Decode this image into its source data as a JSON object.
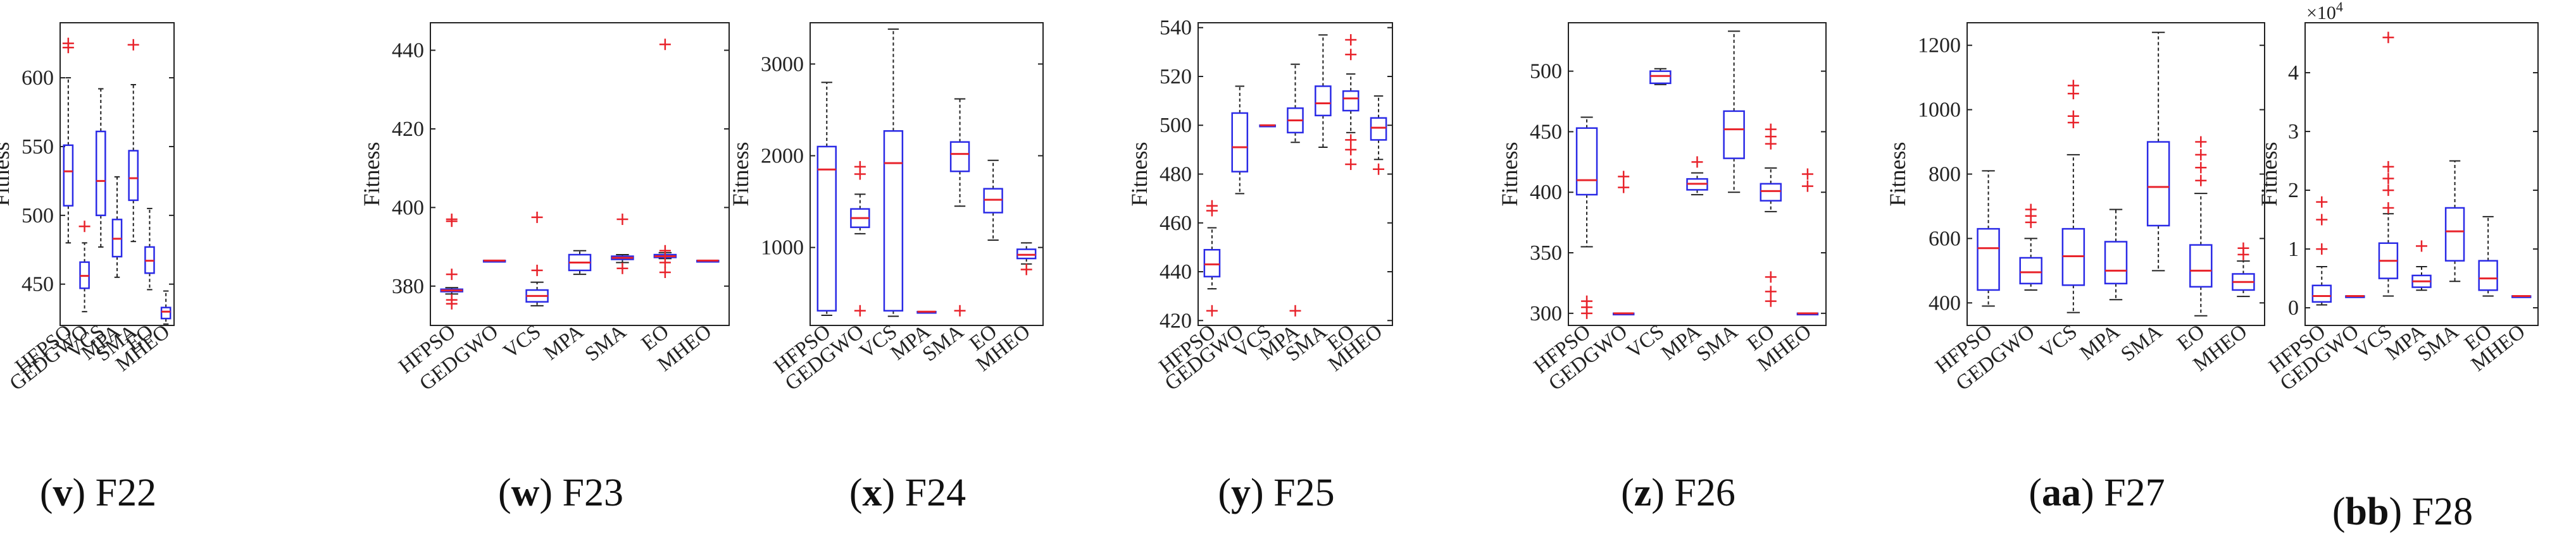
{
  "figure": {
    "ylabel": "Fitness",
    "algorithms": [
      "HFPSO",
      "GEDGWO",
      "VCS",
      "MPA",
      "SMA",
      "EO",
      "MHEO"
    ],
    "colors": {
      "box": "#2a2ae6",
      "median": "#e8232b",
      "outlier": "#e8232b",
      "whisker": "#222222",
      "axis": "#222222"
    }
  },
  "chart_data": [
    {
      "type": "box",
      "id": "v",
      "caption_letter": "v",
      "caption_fn": "F22",
      "title": "F22",
      "ylabel": "Fitness",
      "ylim": [
        420,
        640
      ],
      "yticks": [
        450,
        500,
        550,
        600
      ],
      "ytick_labels": [
        "450",
        "500",
        "550",
        "600"
      ],
      "categories": [
        "HFPSO",
        "GEDGWO",
        "VCS",
        "MPA",
        "SMA",
        "EO",
        "MHEO"
      ],
      "boxes": [
        {
          "min": 480,
          "q1": 507,
          "median": 532,
          "q3": 551,
          "max": 600,
          "outliers": [
            622,
            625
          ]
        },
        {
          "min": 430,
          "q1": 447,
          "median": 456,
          "q3": 466,
          "max": 480,
          "outliers": [
            492
          ]
        },
        {
          "min": 477,
          "q1": 500,
          "median": 525,
          "q3": 561,
          "max": 592,
          "outliers": []
        },
        {
          "min": 455,
          "q1": 470,
          "median": 483,
          "q3": 497,
          "max": 528,
          "outliers": []
        },
        {
          "min": 481,
          "q1": 511,
          "median": 527,
          "q3": 547,
          "max": 595,
          "outliers": [
            624
          ]
        },
        {
          "min": 446,
          "q1": 458,
          "median": 467,
          "q3": 477,
          "max": 505,
          "outliers": []
        },
        {
          "min": 421,
          "q1": 425,
          "median": 430,
          "q3": 433,
          "max": 445,
          "outliers": []
        }
      ]
    },
    {
      "type": "box",
      "id": "w",
      "caption_letter": "w",
      "caption_fn": "F23",
      "title": "F23",
      "ylabel": "Fitness",
      "ylim": [
        370,
        447
      ],
      "yticks": [
        380,
        400,
        420,
        440
      ],
      "ytick_labels": [
        "380",
        "400",
        "420",
        "440"
      ],
      "categories": [
        "HFPSO",
        "GEDGWO",
        "VCS",
        "MPA",
        "SMA",
        "EO",
        "MHEO"
      ],
      "boxes": [
        {
          "min": 378,
          "q1": 378.6,
          "median": 378.9,
          "q3": 379.2,
          "max": 379.6,
          "outliers": [
            397,
            396.5,
            383,
            376.5,
            375.5
          ]
        },
        {
          "min": 386.5,
          "q1": 386.5,
          "median": 386.5,
          "q3": 386.5,
          "max": 386.5,
          "outliers": []
        },
        {
          "min": 375,
          "q1": 376,
          "median": 377.5,
          "q3": 379,
          "max": 381,
          "outliers": [
            397.5,
            384
          ]
        },
        {
          "min": 383,
          "q1": 384,
          "median": 386,
          "q3": 388,
          "max": 389,
          "outliers": []
        },
        {
          "min": 386,
          "q1": 386.8,
          "median": 387.2,
          "q3": 387.6,
          "max": 388,
          "outliers": [
            397,
            384.5
          ]
        },
        {
          "min": 387,
          "q1": 387.3,
          "median": 387.6,
          "q3": 388,
          "max": 388.5,
          "outliers": [
            441.5,
            389,
            386,
            383.5
          ]
        },
        {
          "min": 386.5,
          "q1": 386.5,
          "median": 386.5,
          "q3": 386.5,
          "max": 386.5,
          "outliers": []
        }
      ]
    },
    {
      "type": "box",
      "id": "x",
      "caption_letter": "x",
      "caption_fn": "F24",
      "title": "F24",
      "ylabel": "Fitness",
      "ylim": [
        150,
        3450
      ],
      "yticks": [
        1000,
        2000,
        3000
      ],
      "ytick_labels": [
        "1000",
        "2000",
        "3000"
      ],
      "categories": [
        "HFPSO",
        "GEDGWO",
        "VCS",
        "MPA",
        "SMA",
        "EO",
        "MHEO"
      ],
      "boxes": [
        {
          "min": 260,
          "q1": 310,
          "median": 1850,
          "q3": 2100,
          "max": 2800,
          "outliers": []
        },
        {
          "min": 1150,
          "q1": 1220,
          "median": 1320,
          "q3": 1420,
          "max": 1580,
          "outliers": [
            1800,
            1880,
            310
          ]
        },
        {
          "min": 250,
          "q1": 310,
          "median": 1920,
          "q3": 2270,
          "max": 3380,
          "outliers": []
        },
        {
          "min": 300,
          "q1": 300,
          "median": 300,
          "q3": 300,
          "max": 300,
          "outliers": []
        },
        {
          "min": 1450,
          "q1": 1830,
          "median": 2020,
          "q3": 2150,
          "max": 2620,
          "outliers": [
            310
          ]
        },
        {
          "min": 1080,
          "q1": 1380,
          "median": 1520,
          "q3": 1640,
          "max": 1950,
          "outliers": []
        },
        {
          "min": 820,
          "q1": 880,
          "median": 920,
          "q3": 980,
          "max": 1050,
          "outliers": [
            760
          ]
        }
      ]
    },
    {
      "type": "box",
      "id": "y",
      "caption_letter": "y",
      "caption_fn": "F25",
      "title": "F25",
      "ylabel": "Fitness",
      "ylim": [
        418,
        542
      ],
      "yticks": [
        420,
        440,
        460,
        480,
        500,
        520,
        540
      ],
      "ytick_labels": [
        "420",
        "440",
        "460",
        "480",
        "500",
        "520",
        "540"
      ],
      "categories": [
        "HFPSO",
        "GEDGWO",
        "VCS",
        "MPA",
        "SMA",
        "EO",
        "MHEO"
      ],
      "boxes": [
        {
          "min": 433,
          "q1": 438,
          "median": 443,
          "q3": 449,
          "max": 458,
          "outliers": [
            467,
            465,
            424
          ]
        },
        {
          "min": 472,
          "q1": 481,
          "median": 491,
          "q3": 505,
          "max": 516,
          "outliers": []
        },
        {
          "min": 500,
          "q1": 500,
          "median": 500,
          "q3": 500,
          "max": 500,
          "outliers": []
        },
        {
          "min": 493,
          "q1": 497,
          "median": 502,
          "q3": 507,
          "max": 525,
          "outliers": [
            424
          ]
        },
        {
          "min": 491,
          "q1": 504,
          "median": 509,
          "q3": 516,
          "max": 537,
          "outliers": []
        },
        {
          "min": 497,
          "q1": 506,
          "median": 511,
          "q3": 514,
          "max": 521,
          "outliers": [
            535,
            529,
            494,
            490,
            484
          ]
        },
        {
          "min": 486,
          "q1": 494,
          "median": 499,
          "q3": 503,
          "max": 512,
          "outliers": [
            482
          ]
        }
      ]
    },
    {
      "type": "box",
      "id": "z",
      "caption_letter": "z",
      "caption_fn": "F26",
      "title": "F26",
      "ylabel": "Fitness",
      "ylim": [
        290,
        540
      ],
      "yticks": [
        300,
        350,
        400,
        450,
        500
      ],
      "ytick_labels": [
        "300",
        "350",
        "400",
        "450",
        "500"
      ],
      "categories": [
        "HFPSO",
        "GEDGWO",
        "VCS",
        "MPA",
        "SMA",
        "EO",
        "MHEO"
      ],
      "boxes": [
        {
          "min": 355,
          "q1": 398,
          "median": 410,
          "q3": 453,
          "max": 462,
          "outliers": [
            310,
            305,
            300
          ]
        },
        {
          "min": 300,
          "q1": 300,
          "median": 300,
          "q3": 300,
          "max": 300,
          "outliers": [
            413,
            404
          ]
        },
        {
          "min": 489,
          "q1": 490,
          "median": 496,
          "q3": 500,
          "max": 502,
          "outliers": []
        },
        {
          "min": 398,
          "q1": 402,
          "median": 407,
          "q3": 411,
          "max": 416,
          "outliers": [
            425
          ]
        },
        {
          "min": 400,
          "q1": 428,
          "median": 452,
          "q3": 467,
          "max": 533,
          "outliers": []
        },
        {
          "min": 384,
          "q1": 393,
          "median": 401,
          "q3": 407,
          "max": 420,
          "outliers": [
            452,
            446,
            440,
            330,
            318,
            310
          ]
        },
        {
          "min": 300,
          "q1": 300,
          "median": 300,
          "q3": 300,
          "max": 300,
          "outliers": [
            415,
            405
          ]
        }
      ]
    },
    {
      "type": "box",
      "id": "aa",
      "caption_letter": "aa",
      "caption_fn": "F27",
      "title": "F27",
      "ylabel": "Fitness",
      "ylim": [
        330,
        1270
      ],
      "yticks": [
        400,
        600,
        800,
        1000,
        1200
      ],
      "ytick_labels": [
        "400",
        "600",
        "800",
        "1000",
        "1200"
      ],
      "categories": [
        "HFPSO",
        "GEDGWO",
        "VCS",
        "MPA",
        "SMA",
        "EO",
        "MHEO"
      ],
      "boxes": [
        {
          "min": 390,
          "q1": 440,
          "median": 570,
          "q3": 630,
          "max": 810,
          "outliers": []
        },
        {
          "min": 440,
          "q1": 460,
          "median": 495,
          "q3": 540,
          "max": 600,
          "outliers": [
            690,
            670,
            650
          ]
        },
        {
          "min": 370,
          "q1": 455,
          "median": 545,
          "q3": 630,
          "max": 860,
          "outliers": [
            1075,
            1050,
            980,
            960
          ]
        },
        {
          "min": 410,
          "q1": 460,
          "median": 500,
          "q3": 590,
          "max": 690,
          "outliers": []
        },
        {
          "min": 500,
          "q1": 640,
          "median": 760,
          "q3": 900,
          "max": 1240,
          "outliers": []
        },
        {
          "min": 360,
          "q1": 450,
          "median": 500,
          "q3": 580,
          "max": 740,
          "outliers": [
            900,
            860,
            820,
            780
          ]
        },
        {
          "min": 420,
          "q1": 440,
          "median": 465,
          "q3": 490,
          "max": 530,
          "outliers": [
            570,
            550
          ]
        }
      ]
    },
    {
      "type": "box",
      "id": "bb",
      "caption_letter": "bb",
      "caption_fn": "F28",
      "title": "F28",
      "ylabel": "Fitness",
      "ylim": [
        -0.3,
        4.85
      ],
      "yticks": [
        0,
        1,
        2,
        3,
        4
      ],
      "ytick_labels": [
        "0",
        "1",
        "2",
        "3",
        "4"
      ],
      "multiplier": "×10",
      "multiplier_exp": "4",
      "categories": [
        "HFPSO",
        "GEDGWO",
        "VCS",
        "MPA",
        "SMA",
        "EO",
        "MHEO"
      ],
      "boxes": [
        {
          "min": 0.05,
          "q1": 0.1,
          "median": 0.2,
          "q3": 0.38,
          "max": 0.7,
          "outliers": [
            1.8,
            1.5,
            1.0
          ]
        },
        {
          "min": 0.2,
          "q1": 0.2,
          "median": 0.2,
          "q3": 0.2,
          "max": 0.2,
          "outliers": []
        },
        {
          "min": 0.2,
          "q1": 0.5,
          "median": 0.8,
          "q3": 1.1,
          "max": 1.6,
          "outliers": [
            4.6,
            2.4,
            2.2,
            2.0,
            1.7
          ]
        },
        {
          "min": 0.3,
          "q1": 0.35,
          "median": 0.45,
          "q3": 0.55,
          "max": 0.7,
          "outliers": [
            1.05
          ]
        },
        {
          "min": 0.45,
          "q1": 0.8,
          "median": 1.3,
          "q3": 1.7,
          "max": 2.5,
          "outliers": []
        },
        {
          "min": 0.2,
          "q1": 0.3,
          "median": 0.5,
          "q3": 0.8,
          "max": 1.55,
          "outliers": []
        },
        {
          "min": 0.2,
          "q1": 0.2,
          "median": 0.2,
          "q3": 0.2,
          "max": 0.2,
          "outliers": []
        }
      ]
    }
  ]
}
